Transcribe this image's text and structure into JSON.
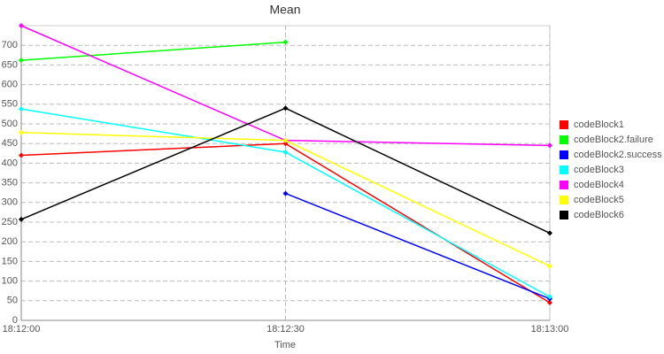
{
  "chart_data": {
    "type": "line",
    "title": "Mean",
    "x_label": "Time",
    "categories": [
      "18:12:00",
      "18:12:30",
      "18:13:00"
    ],
    "series": [
      {
        "name": "codeBlock1",
        "color": "#ff0000",
        "values": [
          420,
          450,
          45
        ]
      },
      {
        "name": "codeBlock2.failure",
        "color": "#00ff00",
        "values": [
          662,
          708,
          null
        ]
      },
      {
        "name": "codeBlock2.success",
        "color": "#0000ff",
        "values": [
          null,
          323,
          55
        ]
      },
      {
        "name": "codeBlock3",
        "color": "#00ffff",
        "values": [
          538,
          428,
          60
        ]
      },
      {
        "name": "codeBlock4",
        "color": "#ff00ff",
        "values": [
          750,
          458,
          445
        ]
      },
      {
        "name": "codeBlock5",
        "color": "#ffff00",
        "values": [
          478,
          458,
          138
        ]
      },
      {
        "name": "codeBlock6",
        "color": "#000000",
        "values": [
          257,
          540,
          222
        ]
      }
    ],
    "ylim": [
      0,
      750
    ],
    "yticks": [
      0,
      50,
      100,
      150,
      200,
      250,
      300,
      350,
      400,
      450,
      500,
      550,
      600,
      650,
      700
    ],
    "grid": true,
    "legend": "right"
  }
}
